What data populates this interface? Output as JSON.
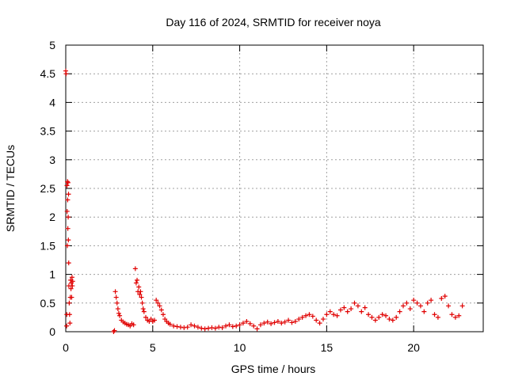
{
  "chart_data": {
    "type": "scatter",
    "title": "Day 116 of 2024, SRMTID for receiver noya",
    "xlabel": "GPS time / hours",
    "ylabel": "SRMTID / TECUs",
    "xlim": [
      0,
      24
    ],
    "ylim": [
      0,
      5
    ],
    "xticks": [
      0,
      5,
      10,
      15,
      20
    ],
    "xtick_labels": [
      "0",
      "5",
      "10",
      "15",
      "20"
    ],
    "yticks": [
      0,
      0.5,
      1,
      1.5,
      2,
      2.5,
      3,
      3.5,
      4,
      4.5,
      5
    ],
    "ytick_labels": [
      "0",
      "0.5",
      "1",
      "1.5",
      "2",
      "2.5",
      "3",
      "3.5",
      "4",
      "4.5",
      "5"
    ],
    "grid": true,
    "marker": "+",
    "colors": {
      "series": "#e00000",
      "grid": "#a0a0a0",
      "axis": "#000000"
    },
    "series": [
      {
        "name": "noya",
        "points": [
          [
            0.0,
            4.55
          ],
          [
            0.02,
            4.5
          ],
          [
            0.05,
            0.1
          ],
          [
            0.06,
            0.3
          ],
          [
            0.07,
            2.55
          ],
          [
            0.08,
            2.1
          ],
          [
            0.09,
            1.5
          ],
          [
            0.1,
            2.62
          ],
          [
            0.11,
            2.3
          ],
          [
            0.12,
            1.8
          ],
          [
            0.13,
            2.6
          ],
          [
            0.14,
            2.0
          ],
          [
            0.15,
            1.6
          ],
          [
            0.16,
            2.4
          ],
          [
            0.17,
            1.2
          ],
          [
            0.18,
            0.8
          ],
          [
            0.2,
            0.5
          ],
          [
            0.22,
            0.3
          ],
          [
            0.24,
            0.15
          ],
          [
            0.26,
            0.6
          ],
          [
            0.28,
            0.9
          ],
          [
            0.3,
            0.75
          ],
          [
            0.32,
            0.85
          ],
          [
            0.34,
            0.6
          ],
          [
            0.36,
            0.95
          ],
          [
            0.38,
            0.8
          ],
          [
            0.4,
            0.88
          ],
          [
            2.75,
            0.0
          ],
          [
            2.8,
            0.02
          ],
          [
            2.85,
            0.7
          ],
          [
            2.9,
            0.6
          ],
          [
            2.95,
            0.5
          ],
          [
            3.0,
            0.4
          ],
          [
            3.05,
            0.32
          ],
          [
            3.1,
            0.28
          ],
          [
            3.2,
            0.2
          ],
          [
            3.3,
            0.17
          ],
          [
            3.4,
            0.15
          ],
          [
            3.5,
            0.13
          ],
          [
            3.6,
            0.12
          ],
          [
            3.7,
            0.1
          ],
          [
            3.8,
            0.14
          ],
          [
            3.9,
            0.12
          ],
          [
            4.0,
            1.1
          ],
          [
            4.05,
            0.85
          ],
          [
            4.1,
            0.9
          ],
          [
            4.15,
            0.7
          ],
          [
            4.2,
            0.78
          ],
          [
            4.25,
            0.65
          ],
          [
            4.3,
            0.7
          ],
          [
            4.35,
            0.6
          ],
          [
            4.4,
            0.5
          ],
          [
            4.45,
            0.4
          ],
          [
            4.5,
            0.35
          ],
          [
            4.6,
            0.25
          ],
          [
            4.7,
            0.2
          ],
          [
            4.8,
            0.18
          ],
          [
            4.9,
            0.22
          ],
          [
            5.0,
            0.18
          ],
          [
            5.1,
            0.2
          ],
          [
            5.2,
            0.55
          ],
          [
            5.3,
            0.5
          ],
          [
            5.4,
            0.45
          ],
          [
            5.5,
            0.38
          ],
          [
            5.6,
            0.3
          ],
          [
            5.7,
            0.22
          ],
          [
            5.8,
            0.18
          ],
          [
            5.9,
            0.15
          ],
          [
            6.0,
            0.13
          ],
          [
            6.2,
            0.1
          ],
          [
            6.4,
            0.09
          ],
          [
            6.6,
            0.08
          ],
          [
            6.8,
            0.07
          ],
          [
            7.0,
            0.08
          ],
          [
            7.2,
            0.12
          ],
          [
            7.4,
            0.1
          ],
          [
            7.6,
            0.08
          ],
          [
            7.8,
            0.06
          ],
          [
            8.0,
            0.05
          ],
          [
            8.2,
            0.06
          ],
          [
            8.4,
            0.07
          ],
          [
            8.6,
            0.06
          ],
          [
            8.8,
            0.08
          ],
          [
            9.0,
            0.07
          ],
          [
            9.2,
            0.1
          ],
          [
            9.4,
            0.12
          ],
          [
            9.6,
            0.09
          ],
          [
            9.8,
            0.1
          ],
          [
            10.0,
            0.12
          ],
          [
            10.2,
            0.15
          ],
          [
            10.4,
            0.18
          ],
          [
            10.6,
            0.14
          ],
          [
            10.8,
            0.1
          ],
          [
            11.0,
            0.05
          ],
          [
            11.2,
            0.12
          ],
          [
            11.4,
            0.15
          ],
          [
            11.6,
            0.17
          ],
          [
            11.8,
            0.14
          ],
          [
            12.0,
            0.16
          ],
          [
            12.2,
            0.18
          ],
          [
            12.4,
            0.15
          ],
          [
            12.6,
            0.17
          ],
          [
            12.8,
            0.2
          ],
          [
            13.0,
            0.16
          ],
          [
            13.2,
            0.18
          ],
          [
            13.4,
            0.22
          ],
          [
            13.6,
            0.25
          ],
          [
            13.8,
            0.28
          ],
          [
            14.0,
            0.3
          ],
          [
            14.2,
            0.27
          ],
          [
            14.4,
            0.2
          ],
          [
            14.6,
            0.15
          ],
          [
            14.8,
            0.22
          ],
          [
            15.0,
            0.3
          ],
          [
            15.2,
            0.35
          ],
          [
            15.4,
            0.3
          ],
          [
            15.6,
            0.28
          ],
          [
            15.8,
            0.38
          ],
          [
            16.0,
            0.42
          ],
          [
            16.2,
            0.35
          ],
          [
            16.4,
            0.4
          ],
          [
            16.6,
            0.5
          ],
          [
            16.8,
            0.45
          ],
          [
            17.0,
            0.35
          ],
          [
            17.2,
            0.42
          ],
          [
            17.4,
            0.3
          ],
          [
            17.6,
            0.25
          ],
          [
            17.8,
            0.2
          ],
          [
            18.0,
            0.25
          ],
          [
            18.2,
            0.3
          ],
          [
            18.4,
            0.28
          ],
          [
            18.6,
            0.22
          ],
          [
            18.8,
            0.2
          ],
          [
            19.0,
            0.25
          ],
          [
            19.2,
            0.35
          ],
          [
            19.4,
            0.45
          ],
          [
            19.6,
            0.5
          ],
          [
            19.8,
            0.4
          ],
          [
            20.0,
            0.55
          ],
          [
            20.2,
            0.5
          ],
          [
            20.4,
            0.45
          ],
          [
            20.6,
            0.35
          ],
          [
            20.8,
            0.5
          ],
          [
            21.0,
            0.55
          ],
          [
            21.2,
            0.3
          ],
          [
            21.4,
            0.25
          ],
          [
            21.6,
            0.58
          ],
          [
            21.8,
            0.62
          ],
          [
            22.0,
            0.45
          ],
          [
            22.2,
            0.3
          ],
          [
            22.4,
            0.25
          ],
          [
            22.6,
            0.28
          ],
          [
            22.8,
            0.45
          ]
        ]
      }
    ]
  }
}
